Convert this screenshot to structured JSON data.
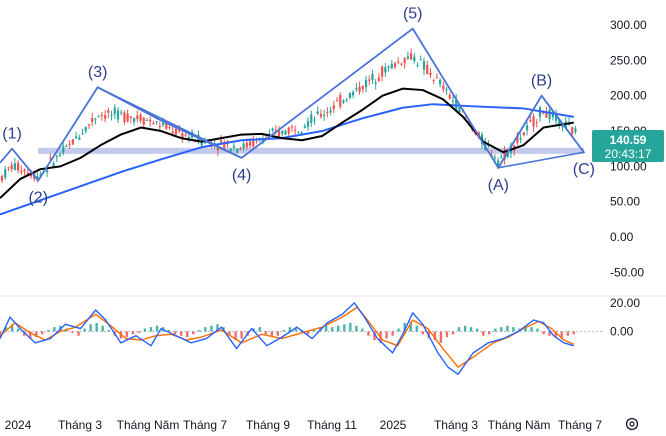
{
  "chart_data": [
    {
      "type": "candlestick",
      "role": "price",
      "ylim": [
        -75,
        310
      ],
      "y_ticks": [
        "300.00",
        "250.00",
        "200.00",
        "150.00",
        "100.00",
        "50.00",
        "0.00",
        "-50.00"
      ],
      "last_price": "140.59",
      "countdown": "20:43:17",
      "support_level": 122,
      "series": [
        {
          "key": "sma_short",
          "color": "#000000",
          "points": [
            [
              0,
              55
            ],
            [
              20,
              82
            ],
            [
              40,
              96
            ],
            [
              60,
              100
            ],
            [
              80,
              112
            ],
            [
              100,
              130
            ],
            [
              120,
              145
            ],
            [
              140,
              155
            ],
            [
              160,
              150
            ],
            [
              180,
              140
            ],
            [
              200,
              135
            ],
            [
              220,
              140
            ],
            [
              240,
              145
            ],
            [
              260,
              146
            ],
            [
              280,
              140
            ],
            [
              300,
              137
            ],
            [
              320,
              143
            ],
            [
              340,
              162
            ],
            [
              360,
              180
            ],
            [
              380,
              200
            ],
            [
              400,
              210
            ],
            [
              420,
              208
            ],
            [
              440,
              195
            ],
            [
              460,
              170
            ],
            [
              480,
              135
            ],
            [
              500,
              120
            ],
            [
              520,
              130
            ],
            [
              540,
              155
            ],
            [
              570,
              162
            ]
          ]
        },
        {
          "key": "sma_long",
          "color": "#2962ff",
          "points": [
            [
              0,
              32
            ],
            [
              40,
              52
            ],
            [
              80,
              72
            ],
            [
              120,
              92
            ],
            [
              160,
              110
            ],
            [
              200,
              127
            ],
            [
              240,
              137
            ],
            [
              280,
              140
            ],
            [
              320,
              150
            ],
            [
              360,
              168
            ],
            [
              400,
              183
            ],
            [
              430,
              188
            ],
            [
              470,
              185
            ],
            [
              520,
              182
            ],
            [
              570,
              170
            ]
          ]
        }
      ],
      "elliott_wave": {
        "color": "#4a74d6",
        "points": [
          [
            0,
            105
          ],
          [
            12,
            125
          ],
          [
            38,
            80
          ],
          [
            97,
            212
          ],
          [
            160,
            165
          ],
          [
            240,
            112
          ],
          [
            410,
            295
          ],
          [
            495,
            98
          ],
          [
            538,
            200
          ],
          [
            580,
            120
          ]
        ],
        "labels": [
          {
            "text": "(1)",
            "x": 12,
            "y": 125
          },
          {
            "text": "(2)",
            "x": 38,
            "y": 80
          },
          {
            "text": "(3)",
            "x": 97,
            "y": 212
          },
          {
            "text": "(4)",
            "x": 240,
            "y": 112
          },
          {
            "text": "(5)",
            "x": 410,
            "y": 295
          },
          {
            "text": "(A)",
            "x": 495,
            "y": 98
          },
          {
            "text": "(B)",
            "x": 538,
            "y": 200
          },
          {
            "text": "(C)",
            "x": 580,
            "y": 120
          }
        ],
        "triangles": [
          {
            "points": [
              [
                97,
                212
              ],
              [
                160,
                165
              ],
              [
                240,
                112
              ]
            ]
          },
          {
            "points": [
              [
                495,
                98
              ],
              [
                538,
                200
              ],
              [
                580,
                120
              ]
            ]
          }
        ]
      }
    },
    {
      "type": "macd",
      "role": "oscillator",
      "ylim": [
        -55,
        22
      ],
      "y_ticks": [
        "20.00",
        "0.00"
      ],
      "macd": [
        [
          0,
          -5
        ],
        [
          10,
          10
        ],
        [
          20,
          2
        ],
        [
          35,
          -8
        ],
        [
          50,
          -5
        ],
        [
          65,
          5
        ],
        [
          80,
          2
        ],
        [
          95,
          15
        ],
        [
          105,
          8
        ],
        [
          120,
          -8
        ],
        [
          135,
          -3
        ],
        [
          150,
          -10
        ],
        [
          160,
          2
        ],
        [
          175,
          -3
        ],
        [
          190,
          -8
        ],
        [
          205,
          -5
        ],
        [
          220,
          3
        ],
        [
          235,
          -12
        ],
        [
          250,
          2
        ],
        [
          265,
          -10
        ],
        [
          280,
          -4
        ],
        [
          295,
          3
        ],
        [
          310,
          -5
        ],
        [
          325,
          6
        ],
        [
          340,
          12
        ],
        [
          352,
          20
        ],
        [
          362,
          10
        ],
        [
          375,
          -5
        ],
        [
          390,
          -15
        ],
        [
          400,
          -2
        ],
        [
          410,
          13
        ],
        [
          420,
          5
        ],
        [
          435,
          -15
        ],
        [
          445,
          -25
        ],
        [
          455,
          -30
        ],
        [
          470,
          -15
        ],
        [
          485,
          -8
        ],
        [
          500,
          -5
        ],
        [
          515,
          0
        ],
        [
          530,
          8
        ],
        [
          540,
          6
        ],
        [
          550,
          -3
        ],
        [
          560,
          -8
        ],
        [
          570,
          -10
        ]
      ],
      "signal": [
        [
          0,
          -3
        ],
        [
          15,
          6
        ],
        [
          30,
          -1
        ],
        [
          45,
          -6
        ],
        [
          60,
          0
        ],
        [
          75,
          3
        ],
        [
          95,
          12
        ],
        [
          110,
          4
        ],
        [
          125,
          -5
        ],
        [
          140,
          -6
        ],
        [
          155,
          -3
        ],
        [
          170,
          -2
        ],
        [
          185,
          -6
        ],
        [
          200,
          -4
        ],
        [
          220,
          1
        ],
        [
          240,
          -8
        ],
        [
          260,
          -2
        ],
        [
          280,
          -5
        ],
        [
          300,
          -1
        ],
        [
          320,
          3
        ],
        [
          340,
          10
        ],
        [
          355,
          17
        ],
        [
          365,
          8
        ],
        [
          380,
          -6
        ],
        [
          395,
          -10
        ],
        [
          410,
          8
        ],
        [
          425,
          2
        ],
        [
          440,
          -12
        ],
        [
          455,
          -25
        ],
        [
          470,
          -18
        ],
        [
          490,
          -8
        ],
        [
          505,
          -4
        ],
        [
          520,
          2
        ],
        [
          535,
          7
        ],
        [
          548,
          2
        ],
        [
          560,
          -6
        ],
        [
          570,
          -9
        ]
      ],
      "histogram": [
        [
          0,
          -4
        ],
        [
          6,
          3
        ],
        [
          12,
          5
        ],
        [
          18,
          2
        ],
        [
          24,
          -3
        ],
        [
          30,
          -5
        ],
        [
          36,
          -4
        ],
        [
          42,
          -2
        ],
        [
          48,
          1
        ],
        [
          54,
          3
        ],
        [
          60,
          4
        ],
        [
          66,
          2
        ],
        [
          72,
          -1
        ],
        [
          78,
          -3
        ],
        [
          84,
          2
        ],
        [
          90,
          5
        ],
        [
          96,
          6
        ],
        [
          102,
          4
        ],
        [
          108,
          1
        ],
        [
          114,
          -3
        ],
        [
          120,
          -5
        ],
        [
          126,
          -4
        ],
        [
          132,
          -2
        ],
        [
          138,
          -1
        ],
        [
          144,
          2
        ],
        [
          150,
          3
        ],
        [
          156,
          4
        ],
        [
          162,
          3
        ],
        [
          168,
          1
        ],
        [
          174,
          -2
        ],
        [
          180,
          -3
        ],
        [
          186,
          -4
        ],
        [
          192,
          -2
        ],
        [
          198,
          1
        ],
        [
          204,
          3
        ],
        [
          210,
          4
        ],
        [
          216,
          5
        ],
        [
          222,
          3
        ],
        [
          228,
          -2
        ],
        [
          234,
          -6
        ],
        [
          240,
          -5
        ],
        [
          246,
          -3
        ],
        [
          252,
          2
        ],
        [
          258,
          3
        ],
        [
          264,
          -2
        ],
        [
          270,
          -4
        ],
        [
          276,
          -3
        ],
        [
          282,
          1
        ],
        [
          288,
          3
        ],
        [
          294,
          2
        ],
        [
          300,
          1
        ],
        [
          306,
          -2
        ],
        [
          312,
          2
        ],
        [
          318,
          3
        ],
        [
          324,
          4
        ],
        [
          330,
          3
        ],
        [
          336,
          4
        ],
        [
          342,
          5
        ],
        [
          348,
          6
        ],
        [
          354,
          4
        ],
        [
          360,
          2
        ],
        [
          366,
          -3
        ],
        [
          372,
          -6
        ],
        [
          378,
          -8
        ],
        [
          384,
          -5
        ],
        [
          390,
          -3
        ],
        [
          396,
          2
        ],
        [
          402,
          6
        ],
        [
          408,
          7
        ],
        [
          414,
          4
        ],
        [
          420,
          -2
        ],
        [
          426,
          -5
        ],
        [
          432,
          -6
        ],
        [
          438,
          -8
        ],
        [
          444,
          -4
        ],
        [
          450,
          -2
        ],
        [
          456,
          3
        ],
        [
          462,
          4
        ],
        [
          468,
          3
        ],
        [
          474,
          2
        ],
        [
          480,
          -3
        ],
        [
          486,
          -2
        ],
        [
          492,
          2
        ],
        [
          498,
          3
        ],
        [
          504,
          4
        ],
        [
          510,
          3
        ],
        [
          516,
          2
        ],
        [
          522,
          4
        ],
        [
          528,
          3
        ],
        [
          534,
          2
        ],
        [
          540,
          -2
        ],
        [
          546,
          -3
        ],
        [
          552,
          -4
        ],
        [
          558,
          -5
        ],
        [
          564,
          -3
        ],
        [
          570,
          -2
        ]
      ]
    }
  ],
  "x_ticks": [
    "2024",
    "Tháng 3",
    "Tháng Năm",
    "Tháng 7",
    "Tháng 9",
    "Tháng 11",
    "2025",
    "Tháng 3",
    "Tháng Năm",
    "Tháng 7"
  ],
  "colors": {
    "up": "#26a69a",
    "down": "#ef5350",
    "macd_line": "#2962ff",
    "signal_line": "#ff6d00",
    "price_badge": "#26a69a",
    "support_band": "#b2bce8"
  },
  "icons": [
    "settings-gear-icon"
  ]
}
